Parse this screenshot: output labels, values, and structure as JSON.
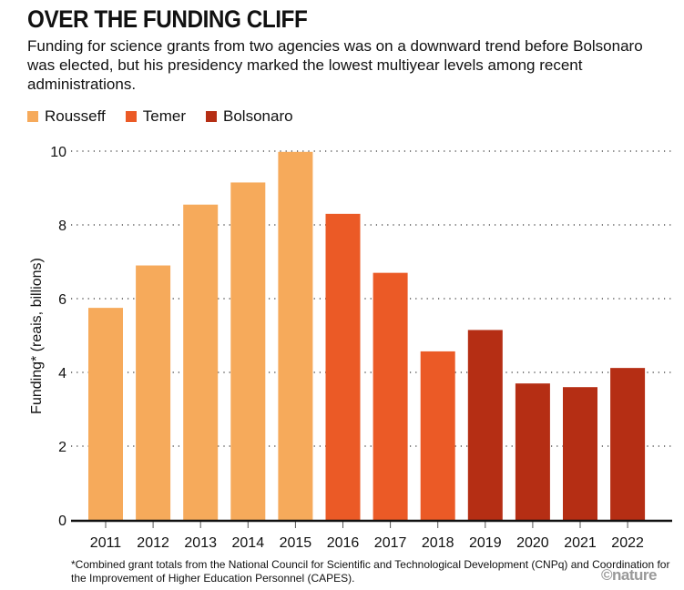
{
  "chart_data": {
    "type": "bar",
    "title": "OVER THE FUNDING CLIFF",
    "subtitle": "Funding for science grants from two agencies was on a downward trend before Bolsonaro was elected, but his presidency marked the lowest multiyear levels among recent administrations.",
    "xlabel": "",
    "ylabel": "Funding* (reais, billions)",
    "ylim": [
      0,
      10
    ],
    "yticks": [
      0,
      2,
      4,
      6,
      8,
      10
    ],
    "grid": true,
    "legend_placement": "top-left",
    "legend": [
      {
        "name": "Rousseff",
        "color": "#f6aa5b"
      },
      {
        "name": "Temer",
        "color": "#eb5a26"
      },
      {
        "name": "Bolsonaro",
        "color": "#b52e14"
      }
    ],
    "categories": [
      "2011",
      "2012",
      "2013",
      "2014",
      "2015",
      "2016",
      "2017",
      "2018",
      "2019",
      "2020",
      "2021",
      "2022"
    ],
    "values": [
      5.75,
      6.9,
      8.55,
      9.15,
      9.98,
      8.3,
      6.7,
      4.57,
      5.15,
      3.7,
      3.6,
      4.12
    ],
    "groups": [
      0,
      0,
      0,
      0,
      0,
      1,
      1,
      1,
      2,
      2,
      2,
      2
    ],
    "footnote": "*Combined grant totals from the National Council for Scientific and Technological Development (CNPq) and Coordination for the Improvement of Higher Education Personnel (CAPES).",
    "credit": "©nature"
  }
}
